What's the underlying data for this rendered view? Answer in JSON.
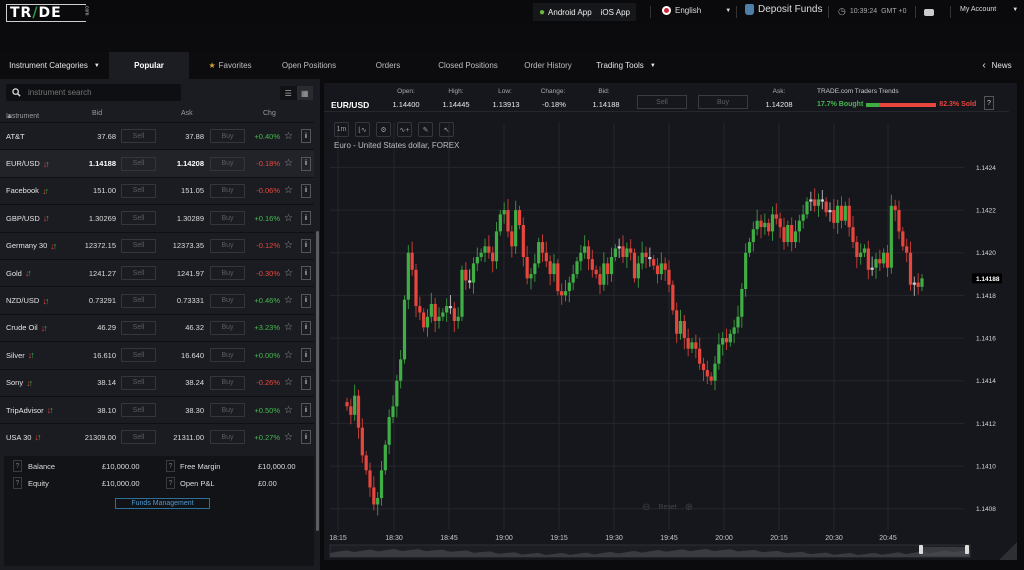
{
  "topbar": {
    "logo": "TRADE",
    "logo_suffix": ".com",
    "android_app": "Android App",
    "ios_app": "iOS App",
    "language": "English",
    "deposit": "Deposit Funds",
    "time": "10:39:24",
    "timezone": "GMT +0",
    "account": "My Account"
  },
  "nav": {
    "tabs": [
      {
        "label": "Instrument Categories"
      },
      {
        "label": "Popular",
        "active": true
      },
      {
        "label": "Favorites"
      },
      {
        "label": "Open Positions"
      },
      {
        "label": "Orders"
      },
      {
        "label": "Closed Positions"
      },
      {
        "label": "Order History"
      },
      {
        "label": "Trading Tools"
      }
    ],
    "news": "News"
  },
  "instruments": {
    "search_placeholder": "instrument search",
    "headers": {
      "instrument": "Instrument",
      "bid": "Bid",
      "ask": "Ask",
      "chg": "Chg"
    },
    "sell_label": "Sell",
    "buy_label": "Buy",
    "rows": [
      {
        "name": "AT&T",
        "bid": "37.68",
        "ask": "37.88",
        "chg": "+0.40%",
        "dir": "pos",
        "arrows": false
      },
      {
        "name": "EUR/USD",
        "bid": "1.14188",
        "ask": "1.14208",
        "chg": "-0.18%",
        "dir": "neg",
        "arrows": true,
        "selected": true
      },
      {
        "name": "Facebook",
        "bid": "151.00",
        "ask": "151.05",
        "chg": "-0.06%",
        "dir": "neg",
        "arrows": true
      },
      {
        "name": "GBP/USD",
        "bid": "1.30269",
        "ask": "1.30289",
        "chg": "+0.16%",
        "dir": "pos",
        "arrows": true
      },
      {
        "name": "Germany 30",
        "bid": "12372.15",
        "ask": "12373.35",
        "chg": "-0.12%",
        "dir": "neg",
        "arrows": true
      },
      {
        "name": "Gold",
        "bid": "1241.27",
        "ask": "1241.97",
        "chg": "-0.30%",
        "dir": "neg",
        "arrows": true
      },
      {
        "name": "NZD/USD",
        "bid": "0.73291",
        "ask": "0.73331",
        "chg": "+0.46%",
        "dir": "pos",
        "arrows": true
      },
      {
        "name": "Crude Oil",
        "bid": "46.29",
        "ask": "46.32",
        "chg": "+3.23%",
        "dir": "pos",
        "arrows": true
      },
      {
        "name": "Silver",
        "bid": "16.610",
        "ask": "16.640",
        "chg": "+0.00%",
        "dir": "pos",
        "arrows": true
      },
      {
        "name": "Sony",
        "bid": "38.14",
        "ask": "38.24",
        "chg": "-0.26%",
        "dir": "neg",
        "arrows": true
      },
      {
        "name": "TripAdvisor",
        "bid": "38.10",
        "ask": "38.30",
        "chg": "+0.50%",
        "dir": "pos",
        "arrows": true
      },
      {
        "name": "USA 30",
        "bid": "21309.00",
        "ask": "21311.00",
        "chg": "+0.27%",
        "dir": "pos",
        "arrows": true
      }
    ]
  },
  "account": {
    "balance_label": "Balance",
    "balance": "£10,000.00",
    "equity_label": "Equity",
    "equity": "£10,000.00",
    "free_margin_label": "Free Margin",
    "free_margin": "£10,000.00",
    "open_pl_label": "Open P&L",
    "open_pl": "£0.00",
    "funds_button": "Funds Management"
  },
  "quote": {
    "symbol": "EUR/USD",
    "open_label": "Open:",
    "open": "1.14400",
    "high_label": "High:",
    "high": "1.14445",
    "low_label": "Low:",
    "low": "1.13913",
    "change_label": "Change:",
    "change": "-0.18%",
    "bid_label": "Bid:",
    "bid": "1.14188",
    "ask_label": "Ask:",
    "ask": "1.14208",
    "sell": "Sell",
    "buy": "Buy",
    "trends_title": "TRADE.com Traders Trends",
    "bought": "17.7% Bought",
    "sold": "82.3% Sold",
    "bought_pct": 17.7
  },
  "chart": {
    "interval": "1m",
    "title": "Euro - United States dollar, FOREX",
    "reset": "Reset",
    "current_price": "1.14188",
    "colors": {
      "up": "#3fae45",
      "down": "#e8453c",
      "grid": "#25262b",
      "bg": "#16171c"
    }
  },
  "chart_data": {
    "type": "candlestick",
    "title": "Euro - United States dollar, FOREX",
    "interval": "1m",
    "x_ticks": [
      "18:15",
      "18:30",
      "18:45",
      "19:00",
      "19:15",
      "19:30",
      "19:45",
      "20:00",
      "20:15",
      "20:30",
      "20:45"
    ],
    "y_ticks": [
      1.1408,
      1.141,
      1.1412,
      1.1414,
      1.1416,
      1.1418,
      1.142,
      1.1422,
      1.1424
    ],
    "ylim": [
      1.14076,
      1.1425
    ],
    "last_price": 1.14188,
    "close_series": [
      1.14128,
      1.14124,
      1.14133,
      1.14118,
      1.14105,
      1.14098,
      1.1409,
      1.14082,
      1.14085,
      1.14098,
      1.1411,
      1.14123,
      1.14128,
      1.1414,
      1.1415,
      1.14178,
      1.142,
      1.14192,
      1.14175,
      1.14172,
      1.14165,
      1.1417,
      1.14176,
      1.14168,
      1.1417,
      1.14172,
      1.14175,
      1.14174,
      1.14168,
      1.1417,
      1.14192,
      1.14187,
      1.14186,
      1.14195,
      1.14198,
      1.142,
      1.14203,
      1.142,
      1.14196,
      1.1421,
      1.14218,
      1.1422,
      1.1421,
      1.14203,
      1.1422,
      1.14213,
      1.14198,
      1.14188,
      1.1419,
      1.14195,
      1.14205,
      1.142,
      1.14196,
      1.1419,
      1.14195,
      1.14182,
      1.1418,
      1.14182,
      1.14186,
      1.1419,
      1.14196,
      1.142,
      1.14203,
      1.14197,
      1.14192,
      1.1419,
      1.14185,
      1.14195,
      1.1419,
      1.14198,
      1.14202,
      1.14203,
      1.14198,
      1.14202,
      1.142,
      1.14188,
      1.14195,
      1.142,
      1.14198,
      1.14197,
      1.14194,
      1.1419,
      1.14195,
      1.14192,
      1.14185,
      1.14173,
      1.14162,
      1.14168,
      1.1416,
      1.14155,
      1.14158,
      1.14155,
      1.14148,
      1.14145,
      1.14142,
      1.1414,
      1.14148,
      1.14157,
      1.1416,
      1.14158,
      1.14162,
      1.14165,
      1.1417,
      1.14183,
      1.142,
      1.14205,
      1.14211,
      1.14215,
      1.14212,
      1.14214,
      1.1421,
      1.14218,
      1.14216,
      1.14212,
      1.14205,
      1.14213,
      1.14205,
      1.1421,
      1.14215,
      1.14218,
      1.14224,
      1.14225,
      1.14222,
      1.14225,
      1.14224,
      1.14219,
      1.1422,
      1.14214,
      1.14222,
      1.14215,
      1.14222,
      1.14212,
      1.14205,
      1.14198,
      1.142,
      1.14202,
      1.14192,
      1.14193,
      1.14197,
      1.14195,
      1.142,
      1.14193,
      1.14222,
      1.1422,
      1.1421,
      1.14203,
      1.142,
      1.14185,
      1.14186,
      1.14184,
      1.14188
    ]
  }
}
